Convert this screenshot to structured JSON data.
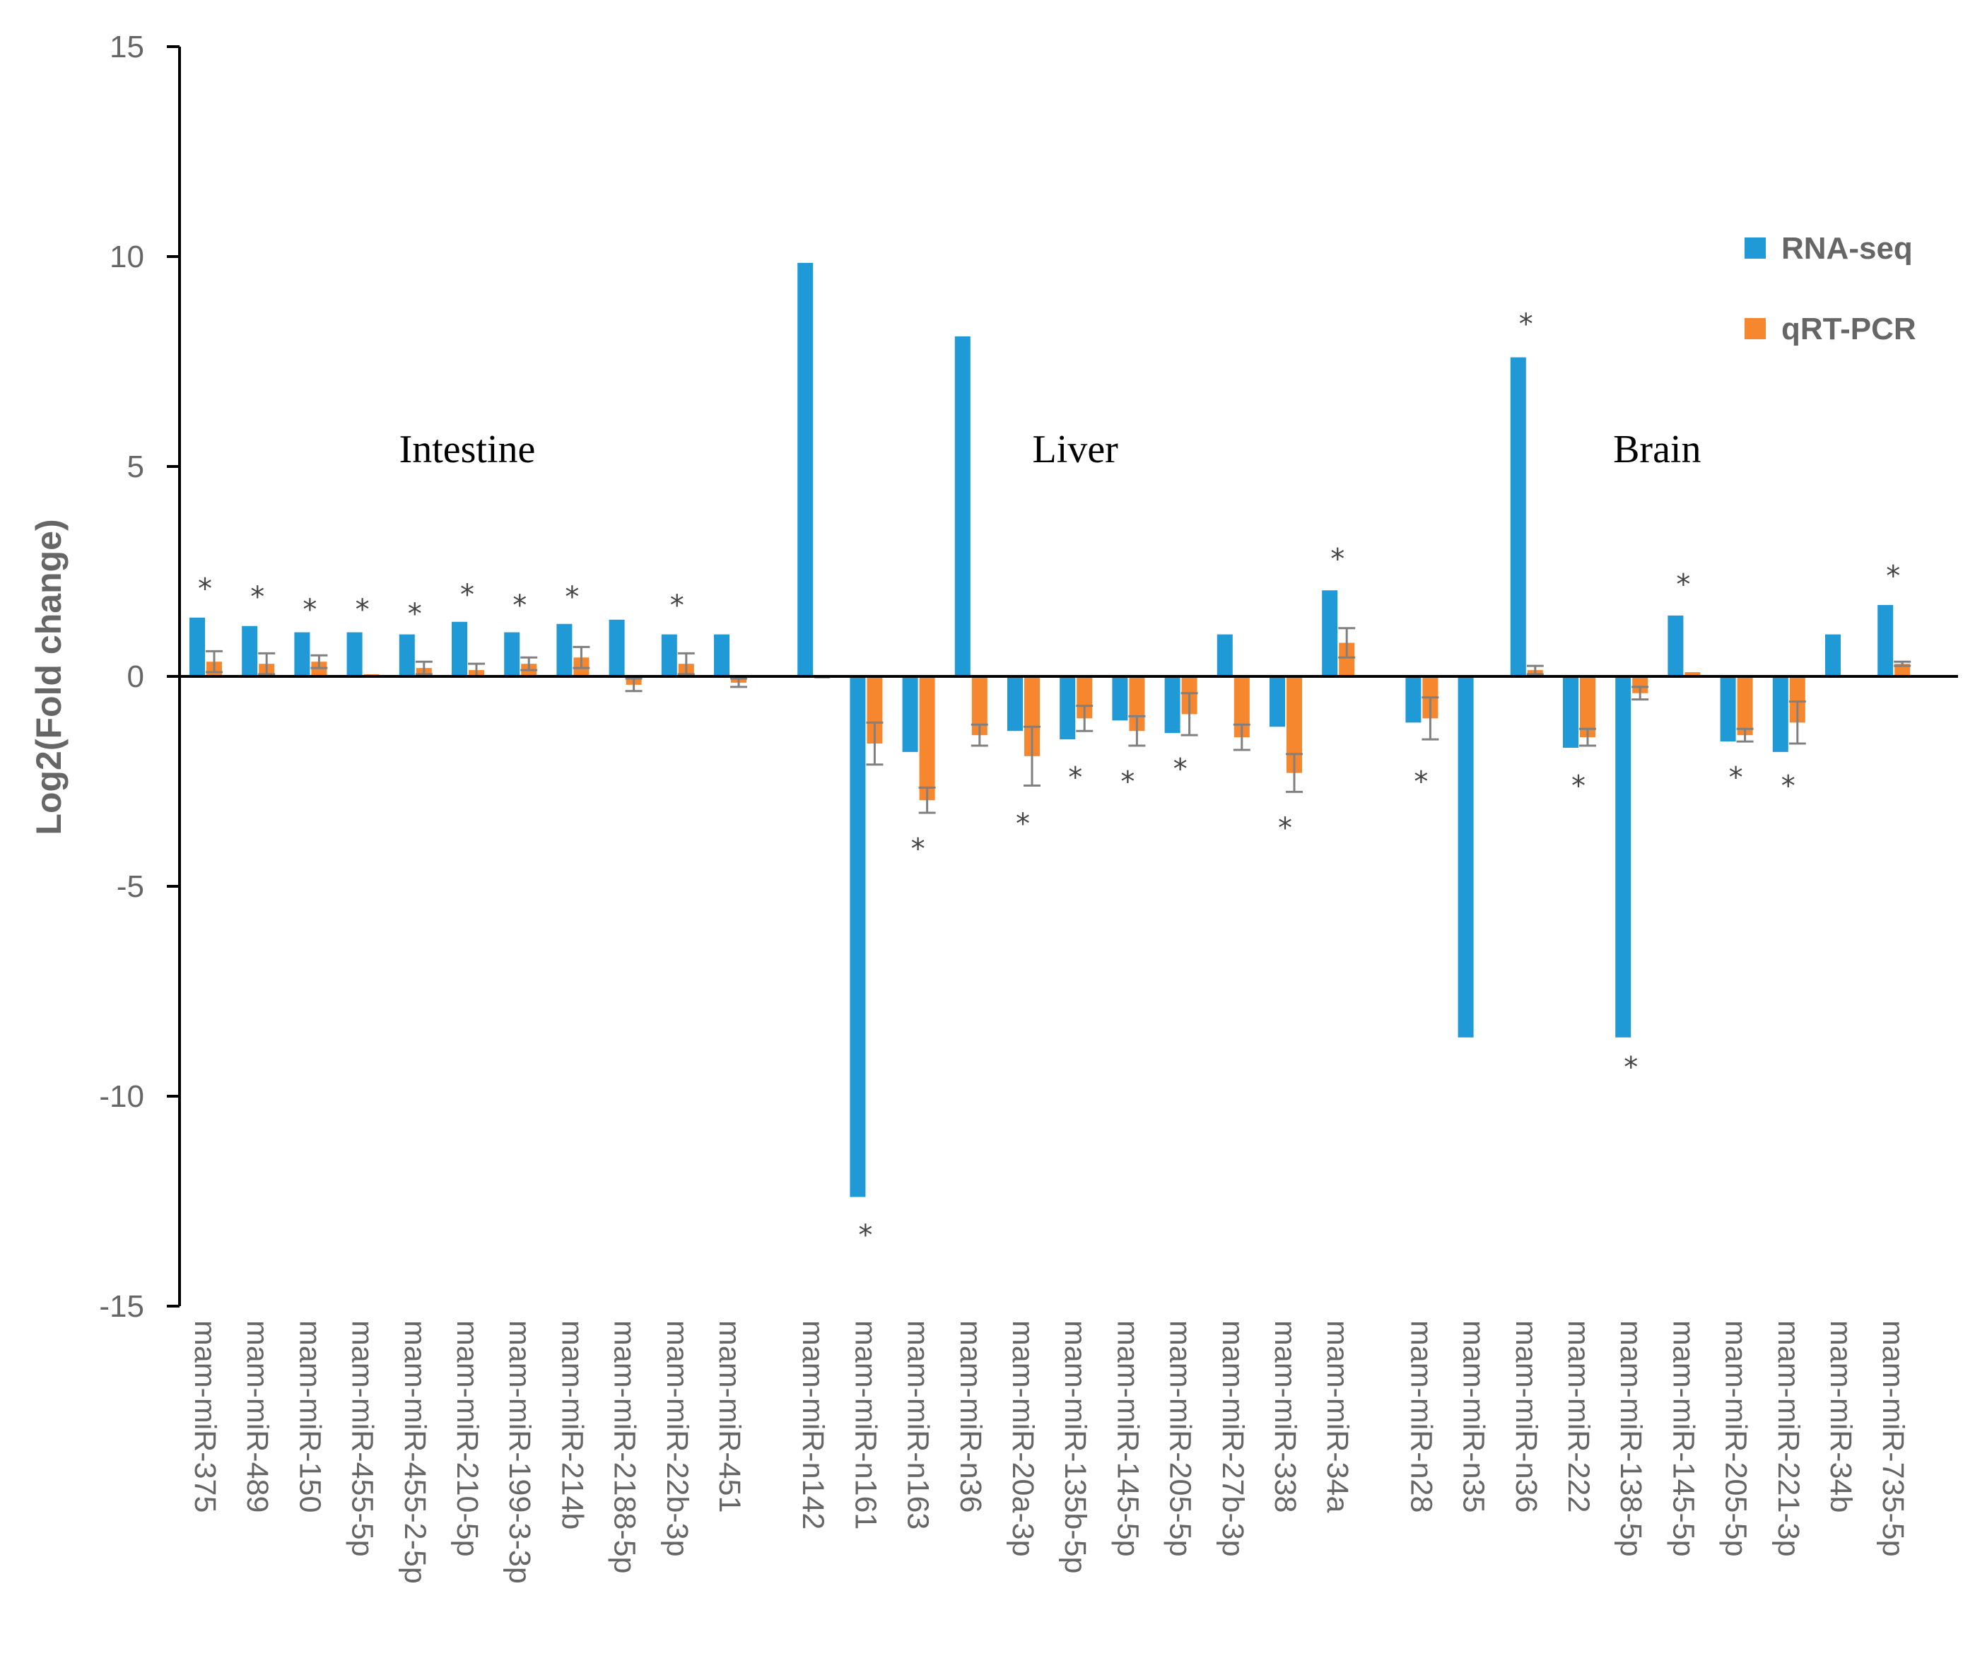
{
  "chart_data": {
    "type": "bar",
    "ylabel": "Log2(Fold change)",
    "xlabel": "",
    "ylim": [
      -15,
      15
    ],
    "yticks": [
      -15,
      -10,
      -5,
      0,
      5,
      10,
      15
    ],
    "colors": {
      "rna": "#1f9ad6",
      "qpcr": "#f7872e",
      "error": "#808080",
      "axis": "#000000"
    },
    "legend": {
      "position": "top-right",
      "entries": [
        "RNA-seq",
        "qRT-PCR"
      ]
    },
    "groups": [
      {
        "label": "Intestine",
        "start": 0,
        "end": 10
      },
      {
        "label": "Liver",
        "start": 11,
        "end": 21
      },
      {
        "label": "Brain",
        "start": 22,
        "end": 31
      }
    ],
    "categories": [
      "mam-miR-375",
      "mam-miR-489",
      "mam-miR-150",
      "mam-miR-455-5p",
      "mam-miR-455-2-5p",
      "mam-miR-210-5p",
      "mam-miR-199-3-3p",
      "mam-miR-214b",
      "mam-miR-2188-5p",
      "mam-miR-22b-3p",
      "mam-miR-451",
      "mam-miR-n142",
      "mam-miR-n161",
      "mam-miR-n163",
      "mam-miR-n36",
      "mam-miR-20a-3p",
      "mam-miR-135b-5p",
      "mam-miR-145-5p",
      "mam-miR-205-5p",
      "mam-miR-27b-3p",
      "mam-miR-338",
      "mam-miR-34a",
      "mam-miR-n28",
      "mam-miR-n35",
      "mam-miR-n36",
      "mam-miR-222",
      "mam-miR-138-5p",
      "mam-miR-145-5p",
      "mam-miR-205-5p",
      "mam-miR-221-3p",
      "mam-miR-34b",
      "mam-miR-735-5p"
    ],
    "series": [
      {
        "name": "RNA-seq",
        "values": [
          1.4,
          1.2,
          1.05,
          1.05,
          1.0,
          1.3,
          1.05,
          1.25,
          1.35,
          1.0,
          1.0,
          9.85,
          -12.4,
          -1.8,
          8.1,
          -1.3,
          -1.5,
          -1.05,
          -1.35,
          1.0,
          -1.2,
          2.05,
          -1.1,
          -8.6,
          7.6,
          -1.7,
          -8.6,
          1.45,
          -1.55,
          -1.8,
          1.0,
          1.7
        ],
        "errors": []
      },
      {
        "name": "qRT-PCR",
        "values": [
          0.35,
          0.3,
          0.35,
          0.05,
          0.2,
          0.15,
          0.3,
          0.45,
          -0.2,
          0.3,
          -0.15,
          -0.05,
          -1.6,
          -2.95,
          -1.4,
          -1.9,
          -1.0,
          -1.3,
          -0.9,
          -1.45,
          -2.3,
          0.8,
          -1.0,
          0.02,
          0.15,
          -1.45,
          -0.4,
          0.1,
          -1.4,
          -1.1,
          0.0,
          0.3
        ],
        "errors": [
          0.25,
          0.25,
          0.15,
          0.03,
          0.15,
          0.15,
          0.15,
          0.25,
          0.15,
          0.25,
          0.1,
          0.03,
          0.5,
          0.3,
          0.25,
          0.7,
          0.3,
          0.35,
          0.5,
          0.3,
          0.45,
          0.35,
          0.5,
          0.02,
          0.1,
          0.2,
          0.15,
          0.03,
          0.15,
          0.5,
          0.0,
          0.05
        ]
      }
    ],
    "significance": [
      {
        "index": 0,
        "y": 2.1
      },
      {
        "index": 1,
        "y": 1.9
      },
      {
        "index": 2,
        "y": 1.6
      },
      {
        "index": 3,
        "y": 1.6
      },
      {
        "index": 4,
        "y": 1.5
      },
      {
        "index": 5,
        "y": 1.95
      },
      {
        "index": 6,
        "y": 1.7
      },
      {
        "index": 7,
        "y": 1.9
      },
      {
        "index": 9,
        "y": 1.7
      },
      {
        "index": 12,
        "y": -13.3
      },
      {
        "index": 13,
        "y": -4.1
      },
      {
        "index": 15,
        "y": -3.5
      },
      {
        "index": 16,
        "y": -2.4
      },
      {
        "index": 17,
        "y": -2.5
      },
      {
        "index": 18,
        "y": -2.2
      },
      {
        "index": 20,
        "y": -3.6
      },
      {
        "index": 21,
        "y": 2.8
      },
      {
        "index": 22,
        "y": -2.5
      },
      {
        "index": 24,
        "y": 8.4
      },
      {
        "index": 25,
        "y": -2.6
      },
      {
        "index": 26,
        "y": -9.3
      },
      {
        "index": 27,
        "y": 2.2
      },
      {
        "index": 28,
        "y": -2.4
      },
      {
        "index": 29,
        "y": -2.6
      },
      {
        "index": 31,
        "y": 2.4
      }
    ],
    "significance_marker": "*"
  }
}
